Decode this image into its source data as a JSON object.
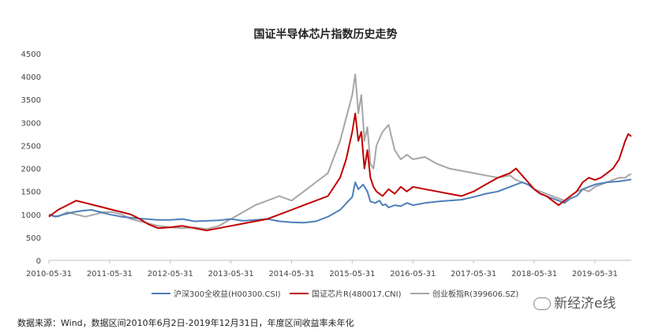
{
  "chart_data": {
    "type": "line",
    "title": "国证半导体芯片指数历史走势",
    "xlabel": "",
    "ylabel": "",
    "ylim": [
      0,
      4500
    ],
    "yticks": [
      "0",
      "500",
      "1000",
      "1500",
      "2000",
      "2500",
      "3000",
      "3500",
      "4000",
      "4500"
    ],
    "xticks": [
      "2010-05-31",
      "2011-05-31",
      "2012-05-31",
      "2013-05-31",
      "2014-05-31",
      "2015-05-31",
      "2016-05-31",
      "2017-05-31",
      "2018-05-31",
      "2019-05-31"
    ],
    "grid": false,
    "legend_position": "bottom",
    "series": [
      {
        "name": "沪深300全收益(H00300.CSI)",
        "color": "#4e7fb9",
        "x": [
          0,
          0.1,
          0.25,
          0.4,
          0.55,
          0.7,
          0.85,
          1.0,
          1.2,
          1.4,
          1.6,
          1.8,
          2.0,
          2.2,
          2.4,
          2.6,
          2.8,
          3.0,
          3.2,
          3.4,
          3.6,
          3.8,
          4.0,
          4.2,
          4.4,
          4.6,
          4.8,
          5.0,
          5.05,
          5.1,
          5.18,
          5.25,
          5.3,
          5.38,
          5.45,
          5.5,
          5.55,
          5.6,
          5.7,
          5.8,
          5.9,
          6.0,
          6.2,
          6.4,
          6.6,
          6.8,
          7.0,
          7.2,
          7.4,
          7.6,
          7.7,
          7.8,
          7.9,
          8.0,
          8.1,
          8.2,
          8.3,
          8.4,
          8.5,
          8.6,
          8.7,
          8.8,
          8.9,
          9.0,
          9.2,
          9.4,
          9.6
        ],
        "values": [
          1000,
          950,
          1000,
          1050,
          1080,
          1100,
          1050,
          1000,
          950,
          920,
          900,
          880,
          880,
          900,
          850,
          860,
          870,
          900,
          860,
          880,
          900,
          850,
          830,
          820,
          850,
          950,
          1100,
          1380,
          1700,
          1550,
          1650,
          1500,
          1280,
          1250,
          1300,
          1200,
          1220,
          1150,
          1200,
          1180,
          1250,
          1200,
          1250,
          1280,
          1300,
          1320,
          1380,
          1450,
          1500,
          1600,
          1650,
          1700,
          1650,
          1550,
          1450,
          1400,
          1350,
          1300,
          1250,
          1350,
          1400,
          1550,
          1600,
          1650,
          1700,
          1720,
          1760
        ]
      },
      {
        "name": "国证芯片R(480017.CNI)",
        "color": "#c00000",
        "x": [
          0,
          0.15,
          0.3,
          0.45,
          0.6,
          0.75,
          0.9,
          1.05,
          1.2,
          1.35,
          1.5,
          1.65,
          1.8,
          2.0,
          2.2,
          2.4,
          2.6,
          2.8,
          3.0,
          3.2,
          3.4,
          3.6,
          3.8,
          4.0,
          4.2,
          4.4,
          4.6,
          4.8,
          4.9,
          5.0,
          5.05,
          5.1,
          5.15,
          5.2,
          5.25,
          5.3,
          5.35,
          5.4,
          5.5,
          5.6,
          5.7,
          5.8,
          5.9,
          6.0,
          6.2,
          6.4,
          6.6,
          6.8,
          7.0,
          7.2,
          7.4,
          7.6,
          7.7,
          7.8,
          7.9,
          8.0,
          8.1,
          8.2,
          8.3,
          8.4,
          8.5,
          8.6,
          8.7,
          8.8,
          8.9,
          9.0,
          9.1,
          9.2,
          9.3,
          9.4,
          9.5,
          9.55,
          9.6
        ],
        "values": [
          950,
          1100,
          1200,
          1300,
          1250,
          1200,
          1150,
          1100,
          1050,
          1000,
          900,
          780,
          700,
          720,
          750,
          700,
          650,
          700,
          750,
          800,
          850,
          900,
          1000,
          1100,
          1200,
          1300,
          1400,
          1800,
          2200,
          2800,
          3200,
          2600,
          2800,
          2000,
          2400,
          1800,
          1600,
          1500,
          1400,
          1550,
          1450,
          1600,
          1500,
          1600,
          1550,
          1500,
          1450,
          1400,
          1500,
          1650,
          1800,
          1900,
          2000,
          1850,
          1700,
          1550,
          1450,
          1400,
          1300,
          1200,
          1300,
          1400,
          1500,
          1700,
          1800,
          1750,
          1800,
          1900,
          2000,
          2200,
          2600,
          2750,
          2700
        ]
      },
      {
        "name": "创业板指R(399606.SZ)",
        "color": "#a6a6a6",
        "x": [
          0,
          0.15,
          0.3,
          0.45,
          0.6,
          0.75,
          0.9,
          1.05,
          1.2,
          1.35,
          1.5,
          1.65,
          1.8,
          2.0,
          2.2,
          2.4,
          2.6,
          2.8,
          3.0,
          3.2,
          3.4,
          3.6,
          3.8,
          4.0,
          4.2,
          4.4,
          4.6,
          4.8,
          4.9,
          5.0,
          5.05,
          5.1,
          5.15,
          5.2,
          5.25,
          5.3,
          5.35,
          5.4,
          5.5,
          5.6,
          5.7,
          5.8,
          5.9,
          6.0,
          6.2,
          6.4,
          6.6,
          6.8,
          7.0,
          7.2,
          7.4,
          7.6,
          7.7,
          7.8,
          7.9,
          8.0,
          8.1,
          8.2,
          8.3,
          8.4,
          8.5,
          8.6,
          8.7,
          8.8,
          8.9,
          9.0,
          9.1,
          9.2,
          9.3,
          9.4,
          9.5,
          9.55,
          9.6
        ],
        "values": [
          1000,
          950,
          1050,
          1000,
          950,
          1000,
          1050,
          1050,
          1000,
          900,
          850,
          800,
          750,
          720,
          700,
          720,
          680,
          750,
          900,
          1050,
          1200,
          1300,
          1400,
          1300,
          1500,
          1700,
          1900,
          2600,
          3100,
          3600,
          4050,
          3200,
          3600,
          2600,
          2900,
          2100,
          2000,
          2500,
          2800,
          2950,
          2400,
          2200,
          2300,
          2200,
          2250,
          2100,
          2000,
          1950,
          1900,
          1850,
          1800,
          1850,
          1750,
          1700,
          1650,
          1550,
          1500,
          1450,
          1400,
          1350,
          1300,
          1400,
          1500,
          1550,
          1500,
          1600,
          1650,
          1700,
          1750,
          1800,
          1800,
          1850,
          1880
        ]
      }
    ]
  },
  "note": "数据来源：Wind，数据区间2010年6月2日-2019年12月31日，年度区间收益率未年化",
  "watermark": "新经济e线"
}
